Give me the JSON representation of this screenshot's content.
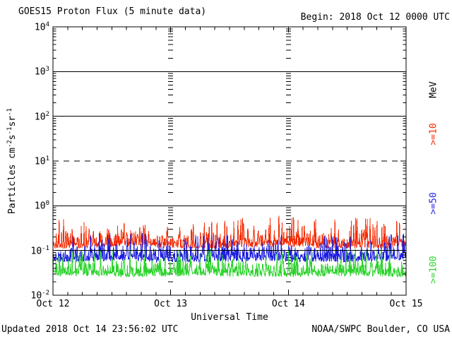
{
  "header": {
    "title": "GOES15 Proton Flux (5 minute data)",
    "begin": "Begin: 2018 Oct 12 0000 UTC"
  },
  "footer": {
    "updated": "Updated 2018 Oct 14 23:56:02 UTC",
    "source": "NOAA/SWPC Boulder, CO USA"
  },
  "colors": {
    "axis": "#000000",
    "ge10": "#f42a00",
    "ge50": "#1f1fe0",
    "ge100": "#2ed32e"
  },
  "right_labels": [
    {
      "name": "units-label",
      "text": "MeV",
      "color": "#000000"
    },
    {
      "name": "series-label-ge10",
      "text": ">=10",
      "color": "#f42a00"
    },
    {
      "name": "series-label-ge50",
      "text": ">=50",
      "color": "#1f1fe0"
    },
    {
      "name": "series-label-ge100",
      "text": ">=100",
      "color": "#2ed32e"
    }
  ],
  "chart_data": {
    "type": "line",
    "title": "GOES15 Proton Flux (5 minute data)",
    "xlabel": "Universal Time",
    "ylabel_segments": [
      {
        "t": "Particles cm"
      },
      {
        "sup": "-2"
      },
      {
        "t": "s"
      },
      {
        "sup": "-1"
      },
      {
        "t": "sr"
      },
      {
        "sup": "-1"
      }
    ],
    "y_axis": {
      "log_min": -2,
      "log_max": 4,
      "ticks": [
        {
          "base": "10",
          "exp": "4"
        },
        {
          "base": "10",
          "exp": "3"
        },
        {
          "base": "10",
          "exp": "2"
        },
        {
          "base": "10",
          "exp": "1"
        },
        {
          "base": "10",
          "exp": "0"
        },
        {
          "base": "10",
          "exp": "-1"
        },
        {
          "base": "10",
          "exp": "-2"
        }
      ]
    },
    "x_axis": {
      "range_days": 3,
      "minor_tick_hours": 3,
      "day_tick_columns": [
        1,
        2
      ],
      "ticks": [
        {
          "label": "Oct 12",
          "day": 0
        },
        {
          "label": "Oct 13",
          "day": 1
        },
        {
          "label": "Oct 14",
          "day": 2
        },
        {
          "label": "Oct 15",
          "day": 3
        }
      ]
    },
    "gridlines": [
      {
        "value": 1000,
        "style": "solid"
      },
      {
        "value": 100,
        "style": "solid"
      },
      {
        "value": 10,
        "style": "dashed"
      },
      {
        "value": 1,
        "style": "solid"
      },
      {
        "value": 0.1,
        "style": "solid"
      }
    ],
    "series": [
      {
        "name": "Protons >=10 MeV",
        "label": ">=10",
        "color": "#f42a00",
        "floor": 0.115,
        "peak": 0.55,
        "noise_decades": 0.17,
        "slow_wave_decades": 0.03,
        "samples_per_day": 288,
        "seed": 42
      },
      {
        "name": "Protons >=50 MeV",
        "label": ">=50",
        "color": "#1f1fe0",
        "floor": 0.056,
        "peak": 0.24,
        "noise_decades": 0.16,
        "slow_wave_decades": 0.02,
        "samples_per_day": 288,
        "seed": 1337
      },
      {
        "name": "Protons >=100 MeV",
        "label": ">=100",
        "color": "#2ed32e",
        "floor": 0.026,
        "peak": 0.11,
        "noise_decades": 0.16,
        "slow_wave_decades": 0.02,
        "samples_per_day": 288,
        "seed": 2018
      }
    ],
    "units_label": "MeV"
  }
}
